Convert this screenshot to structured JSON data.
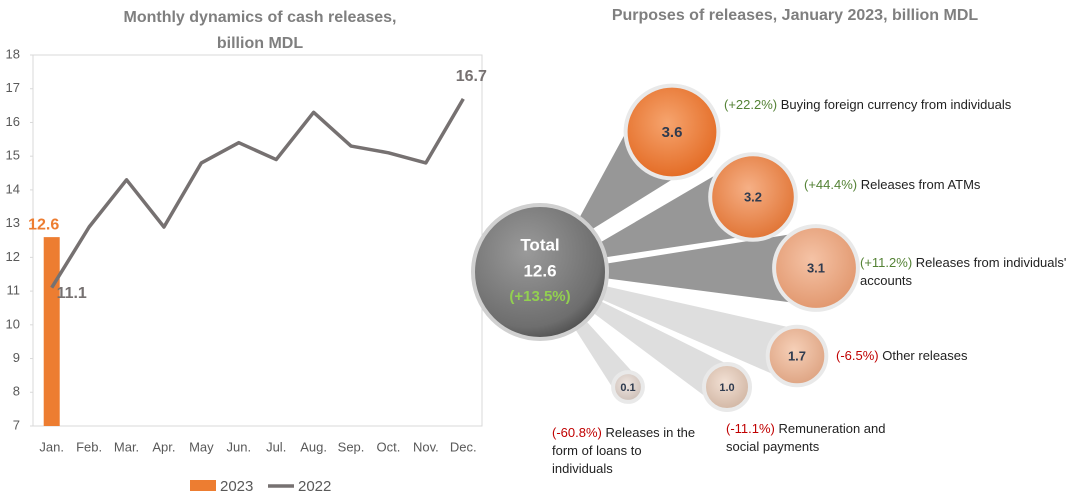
{
  "chart_data": [
    {
      "type": "combo",
      "title": [
        "Monthly dynamics of cash releases,",
        "billion MDL"
      ],
      "categories": [
        "Jan.",
        "Feb.",
        "Mar.",
        "Apr.",
        "May",
        "Jun.",
        "Jul.",
        "Aug.",
        "Sep.",
        "Oct.",
        "Nov.",
        "Dec."
      ],
      "series": [
        {
          "name": "2023",
          "type": "bar",
          "color": "#ed7d31",
          "values": [
            12.6,
            null,
            null,
            null,
            null,
            null,
            null,
            null,
            null,
            null,
            null,
            null
          ],
          "value_labels": [
            "12.6",
            null,
            null,
            null,
            null,
            null,
            null,
            null,
            null,
            null,
            null,
            null
          ]
        },
        {
          "name": "2022",
          "type": "line",
          "color": "#767171",
          "values": [
            11.1,
            12.9,
            14.3,
            12.9,
            14.8,
            15.4,
            14.9,
            16.3,
            15.3,
            15.1,
            14.8,
            16.7
          ],
          "value_labels": [
            "11.1",
            null,
            null,
            null,
            null,
            null,
            null,
            null,
            null,
            null,
            null,
            "16.7"
          ]
        }
      ],
      "ylim": [
        7,
        18
      ],
      "yticks": [
        7,
        8,
        9,
        10,
        11,
        12,
        13,
        14,
        15,
        16,
        17,
        18
      ],
      "grid": false,
      "legend": "bottom"
    },
    {
      "type": "bubble",
      "title": "Purposes of releases, January 2023, billion MDL",
      "total": {
        "label": "Total",
        "value": 12.6,
        "change": "(+13.5%)"
      },
      "items": [
        {
          "value": 3.6,
          "change": "(+22.2%)",
          "label": "Buying foreign currency from individuals"
        },
        {
          "value": 3.2,
          "change": "(+44.4%)",
          "label": "Releases from ATMs"
        },
        {
          "value": 3.1,
          "change": "(+11.2%)",
          "label": "Releases from individuals' accounts"
        },
        {
          "value": 1.7,
          "change": "(-6.5%)",
          "label": "Other releases"
        },
        {
          "value": 1.0,
          "value_label": "1.0",
          "change": "(-11.1%)",
          "label": "Remuneration and social payments"
        },
        {
          "value": 0.1,
          "change": "(-60.8%)",
          "label": "Releases in the form of loans to individuals"
        }
      ]
    }
  ]
}
